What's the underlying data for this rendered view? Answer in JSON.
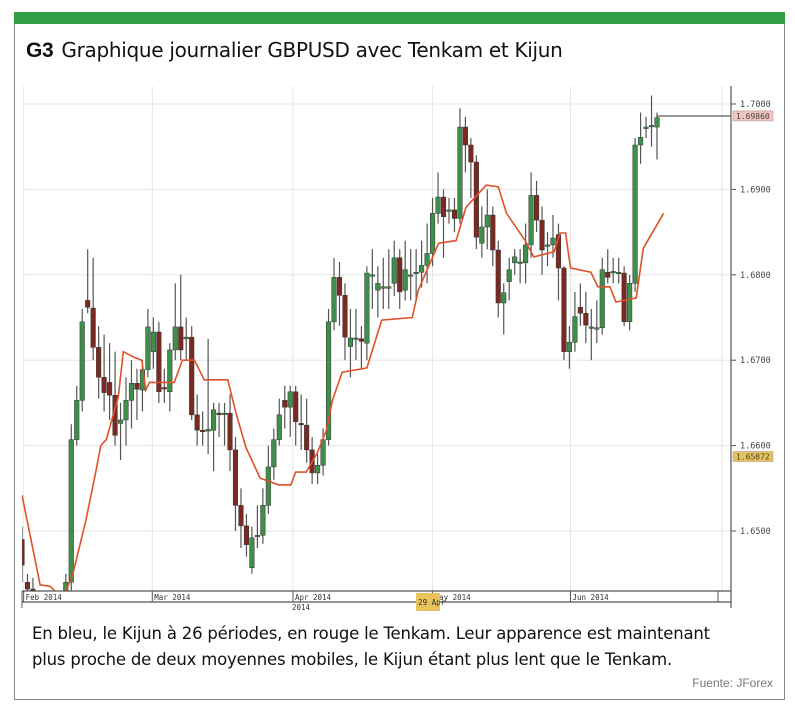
{
  "header": {
    "code": "G3",
    "title": "Graphique journalier GBPUSD avec Tenkam et Kijun"
  },
  "caption": {
    "line1": "En bleu, le Kijun à 26 périodes, en rouge le Tenkam. Leur apparence est maintenant",
    "line2": "plus proche de deux moyennes mobiles, le Kijun étant plus lent que le Tenkam.",
    "source": "Fuente: JForex"
  },
  "colors": {
    "frame_accent": "#2f9e44",
    "bull": "#3f8f4a",
    "bear": "#7a2a22",
    "tenkan": "#e0502a",
    "grid": "#e6e6e6"
  },
  "chart_data": {
    "type": "candlestick",
    "title": "",
    "xlabel": "2014",
    "ylabel": "",
    "ylim": [
      1.6415,
      1.703
    ],
    "grid": true,
    "y_ticks": [
      "1.6500",
      "1.6600",
      "1.6700",
      "1.6800",
      "1.6900",
      "1.7000"
    ],
    "x_ticks": [
      {
        "label": "Feb 2014",
        "index": 0.3
      },
      {
        "label": "Mar 2014",
        "index": 23.8
      },
      {
        "label": "Apr 2014",
        "index": 49.5
      },
      {
        "label": "May 2014",
        "index": 75
      },
      {
        "label": "Jun 2014",
        "index": 100.2
      }
    ],
    "crosshair_date": {
      "label": "29 Apr",
      "index": 74
    },
    "price_markers": [
      {
        "label": "1.69860",
        "value": 1.6986,
        "color": "#f2c4c0"
      },
      {
        "label": "1.65872",
        "value": 1.65872,
        "color": "#e8c35a"
      }
    ],
    "ohlc_fields": [
      "open",
      "high",
      "low",
      "close"
    ],
    "candles": [
      [
        1.649,
        1.6505,
        1.644,
        1.646
      ],
      [
        1.644,
        1.645,
        1.6415,
        1.6432
      ],
      [
        1.6432,
        1.6445,
        1.641,
        1.6425
      ],
      [
        1.642,
        1.643,
        1.6385,
        1.6395
      ],
      [
        1.6395,
        1.641,
        1.637,
        1.638
      ],
      [
        1.638,
        1.64,
        1.636,
        1.639
      ],
      [
        1.639,
        1.641,
        1.6375,
        1.6385
      ],
      [
        1.6385,
        1.642,
        1.638,
        1.641
      ],
      [
        1.641,
        1.645,
        1.6405,
        1.644
      ],
      [
        1.644,
        1.6625,
        1.643,
        1.6607
      ],
      [
        1.6607,
        1.667,
        1.66,
        1.6653
      ],
      [
        1.6653,
        1.676,
        1.664,
        1.6745
      ],
      [
        1.677,
        1.683,
        1.6755,
        1.6762
      ],
      [
        1.6761,
        1.682,
        1.67,
        1.6715
      ],
      [
        1.6715,
        1.674,
        1.6655,
        1.668
      ],
      [
        1.668,
        1.673,
        1.664,
        1.6662
      ],
      [
        1.6674,
        1.672,
        1.663,
        1.6659
      ],
      [
        1.6659,
        1.671,
        1.66,
        1.6612
      ],
      [
        1.6626,
        1.665,
        1.6583,
        1.663
      ],
      [
        1.663,
        1.668,
        1.66,
        1.6653
      ],
      [
        1.6653,
        1.67,
        1.662,
        1.6673
      ],
      [
        1.6673,
        1.669,
        1.663,
        1.6666
      ],
      [
        1.6665,
        1.67,
        1.664,
        1.6689
      ],
      [
        1.6689,
        1.676,
        1.668,
        1.6739
      ],
      [
        1.671,
        1.675,
        1.669,
        1.6733
      ],
      [
        1.6733,
        1.6745,
        1.665,
        1.6663
      ],
      [
        1.6668,
        1.669,
        1.665,
        1.6667
      ],
      [
        1.6663,
        1.672,
        1.664,
        1.6712
      ],
      [
        1.6712,
        1.679,
        1.67,
        1.6739
      ],
      [
        1.6739,
        1.68,
        1.67,
        1.6712
      ],
      [
        1.6725,
        1.675,
        1.67,
        1.6727
      ],
      [
        1.6727,
        1.674,
        1.663,
        1.6636
      ],
      [
        1.6636,
        1.666,
        1.66,
        1.6618
      ],
      [
        1.6618,
        1.664,
        1.66,
        1.6617
      ],
      [
        1.6617,
        1.6725,
        1.659,
        1.6619
      ],
      [
        1.6618,
        1.665,
        1.657,
        1.6642
      ],
      [
        1.6638,
        1.665,
        1.661,
        1.6637
      ],
      [
        1.6637,
        1.665,
        1.66,
        1.6638
      ],
      [
        1.6638,
        1.666,
        1.657,
        1.6595
      ],
      [
        1.6595,
        1.661,
        1.65,
        1.653
      ],
      [
        1.653,
        1.655,
        1.648,
        1.6506
      ],
      [
        1.6506,
        1.652,
        1.647,
        1.6484
      ],
      [
        1.6457,
        1.6505,
        1.645,
        1.6492
      ],
      [
        1.6494,
        1.653,
        1.648,
        1.6495
      ],
      [
        1.6495,
        1.655,
        1.6485,
        1.653
      ],
      [
        1.653,
        1.66,
        1.652,
        1.6575
      ],
      [
        1.6575,
        1.662,
        1.656,
        1.6607
      ],
      [
        1.6607,
        1.6655,
        1.66,
        1.6636
      ],
      [
        1.6653,
        1.667,
        1.662,
        1.6645
      ],
      [
        1.6645,
        1.667,
        1.661,
        1.6663
      ],
      [
        1.6663,
        1.667,
        1.66,
        1.6628
      ],
      [
        1.6626,
        1.666,
        1.6595,
        1.6625
      ],
      [
        1.6624,
        1.6655,
        1.658,
        1.6595
      ],
      [
        1.6595,
        1.661,
        1.6555,
        1.6568
      ],
      [
        1.6568,
        1.659,
        1.6555,
        1.6577
      ],
      [
        1.6577,
        1.662,
        1.6565,
        1.6607
      ],
      [
        1.6607,
        1.676,
        1.66,
        1.6745
      ],
      [
        1.6745,
        1.682,
        1.6735,
        1.6797
      ],
      [
        1.6797,
        1.6815,
        1.674,
        1.6776
      ],
      [
        1.6776,
        1.679,
        1.67,
        1.6727
      ],
      [
        1.6716,
        1.676,
        1.668,
        1.6726
      ],
      [
        1.6726,
        1.676,
        1.67,
        1.6726
      ],
      [
        1.6725,
        1.674,
        1.669,
        1.6722
      ],
      [
        1.672,
        1.681,
        1.67,
        1.6802
      ],
      [
        1.68,
        1.683,
        1.676,
        1.68
      ],
      [
        1.6782,
        1.681,
        1.675,
        1.679
      ],
      [
        1.6786,
        1.682,
        1.676,
        1.6786
      ],
      [
        1.6786,
        1.683,
        1.676,
        1.6786
      ],
      [
        1.679,
        1.684,
        1.6775,
        1.682
      ],
      [
        1.682,
        1.683,
        1.676,
        1.678
      ],
      [
        1.6782,
        1.684,
        1.677,
        1.6806
      ],
      [
        1.68,
        1.683,
        1.677,
        1.68
      ],
      [
        1.6803,
        1.683,
        1.677,
        1.6803
      ],
      [
        1.6803,
        1.684,
        1.6785,
        1.6811
      ],
      [
        1.6811,
        1.686,
        1.679,
        1.6825
      ],
      [
        1.6825,
        1.689,
        1.681,
        1.6872
      ],
      [
        1.6872,
        1.692,
        1.686,
        1.6891
      ],
      [
        1.6891,
        1.69,
        1.682,
        1.6868
      ],
      [
        1.6876,
        1.689,
        1.686,
        1.6876
      ],
      [
        1.6876,
        1.689,
        1.685,
        1.6866
      ],
      [
        1.6866,
        1.6995,
        1.686,
        1.6973
      ],
      [
        1.6973,
        1.6985,
        1.692,
        1.6952
      ],
      [
        1.6952,
        1.696,
        1.689,
        1.6932
      ],
      [
        1.6932,
        1.694,
        1.683,
        1.6844
      ],
      [
        1.6837,
        1.688,
        1.682,
        1.6856
      ],
      [
        1.6856,
        1.69,
        1.683,
        1.687
      ],
      [
        1.687,
        1.688,
        1.681,
        1.6829
      ],
      [
        1.6829,
        1.684,
        1.675,
        1.6767
      ],
      [
        1.6767,
        1.679,
        1.673,
        1.6779
      ],
      [
        1.6792,
        1.682,
        1.677,
        1.6806
      ],
      [
        1.6814,
        1.683,
        1.68,
        1.6821
      ],
      [
        1.6815,
        1.683,
        1.679,
        1.6815
      ],
      [
        1.6814,
        1.686,
        1.679,
        1.6835
      ],
      [
        1.6835,
        1.692,
        1.682,
        1.6893
      ],
      [
        1.6893,
        1.691,
        1.685,
        1.6864
      ],
      [
        1.6864,
        1.688,
        1.68,
        1.6829
      ],
      [
        1.6835,
        1.685,
        1.681,
        1.6835
      ],
      [
        1.6835,
        1.687,
        1.682,
        1.6843
      ],
      [
        1.6847,
        1.686,
        1.677,
        1.6808
      ],
      [
        1.6808,
        1.681,
        1.67,
        1.671
      ],
      [
        1.671,
        1.674,
        1.669,
        1.6721
      ],
      [
        1.6721,
        1.678,
        1.671,
        1.6751
      ],
      [
        1.6762,
        1.679,
        1.674,
        1.6755
      ],
      [
        1.6755,
        1.678,
        1.672,
        1.6741
      ],
      [
        1.6739,
        1.676,
        1.67,
        1.6739
      ],
      [
        1.6738,
        1.677,
        1.672,
        1.6738
      ],
      [
        1.6738,
        1.682,
        1.673,
        1.6806
      ],
      [
        1.6803,
        1.683,
        1.679,
        1.6797
      ],
      [
        1.6804,
        1.682,
        1.679,
        1.6804
      ],
      [
        1.6803,
        1.682,
        1.679,
        1.6803
      ],
      [
        1.6802,
        1.681,
        1.674,
        1.6745
      ],
      [
        1.6745,
        1.68,
        1.6735,
        1.679
      ],
      [
        1.679,
        1.696,
        1.678,
        1.6952
      ],
      [
        1.6952,
        1.699,
        1.693,
        1.6961
      ],
      [
        1.6973,
        1.6985,
        1.696,
        1.6973
      ],
      [
        1.6975,
        1.701,
        1.695,
        1.6975
      ],
      [
        1.6973,
        1.699,
        1.6935,
        1.6984
      ]
    ],
    "line_series": [
      {
        "color": "#e0502a",
        "points": [
          [
            0,
            1.6542
          ],
          [
            3.3,
            1.6437
          ],
          [
            5.2,
            1.6435
          ],
          [
            7.4,
            1.642
          ],
          [
            9.3,
            1.645
          ],
          [
            11.7,
            1.6513
          ],
          [
            13.5,
            1.657
          ],
          [
            14.4,
            1.66
          ],
          [
            15.4,
            1.6607
          ],
          [
            17.6,
            1.6657
          ],
          [
            18.5,
            1.671
          ],
          [
            20.6,
            1.6703
          ],
          [
            21.9,
            1.67
          ],
          [
            22.6,
            1.6665
          ],
          [
            23.3,
            1.6674
          ],
          [
            27.8,
            1.6674
          ],
          [
            29.3,
            1.67
          ],
          [
            31.5,
            1.67
          ],
          [
            33.3,
            1.6677
          ],
          [
            37.6,
            1.6677
          ],
          [
            39.1,
            1.6638
          ],
          [
            40.9,
            1.6598
          ],
          [
            43.5,
            1.6562
          ],
          [
            46.9,
            1.6554
          ],
          [
            49.1,
            1.6554
          ],
          [
            50,
            1.6569
          ],
          [
            51.9,
            1.6569
          ],
          [
            53.9,
            1.6591
          ],
          [
            55.6,
            1.6618
          ],
          [
            56.7,
            1.6653
          ],
          [
            58.5,
            1.6686
          ],
          [
            63,
            1.6691
          ],
          [
            65.7,
            1.6747
          ],
          [
            71.3,
            1.675
          ],
          [
            72.4,
            1.6782
          ],
          [
            76.1,
            1.6837
          ],
          [
            79.3,
            1.684
          ],
          [
            81.1,
            1.6879
          ],
          [
            84.8,
            1.6905
          ],
          [
            87,
            1.6903
          ],
          [
            88.5,
            1.6872
          ],
          [
            91.9,
            1.684
          ],
          [
            93.5,
            1.6821
          ],
          [
            97.2,
            1.6827
          ],
          [
            98.3,
            1.6849
          ],
          [
            99.3,
            1.6849
          ],
          [
            100.2,
            1.6808
          ],
          [
            103.9,
            1.6803
          ],
          [
            105.2,
            1.6786
          ],
          [
            107.4,
            1.6786
          ],
          [
            108.5,
            1.6768
          ],
          [
            112.2,
            1.6773
          ],
          [
            113.5,
            1.6831
          ],
          [
            117.2,
            1.6872
          ]
        ]
      }
    ]
  }
}
